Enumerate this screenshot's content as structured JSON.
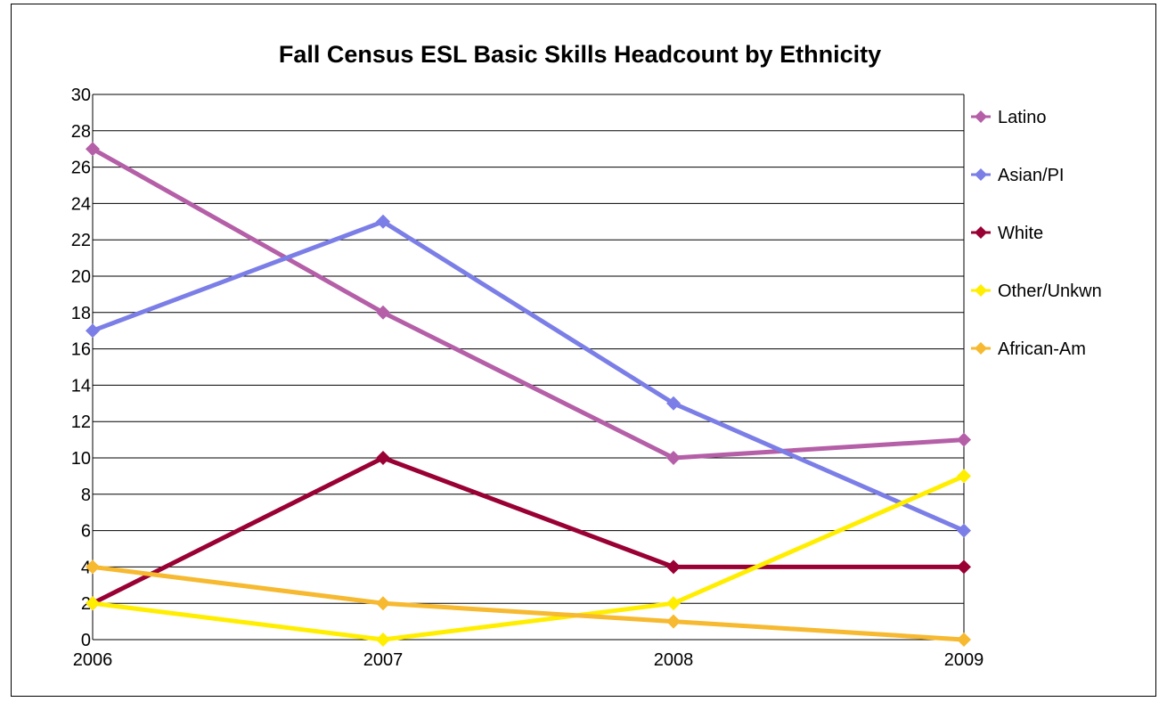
{
  "chart_data": {
    "type": "line",
    "title": "Fall Census ESL Basic Skills Headcount by Ethnicity",
    "xlabel": "",
    "ylabel": "",
    "x": [
      "2006",
      "2007",
      "2008",
      "2009"
    ],
    "ylim": [
      0,
      30
    ],
    "yticks": [
      "0",
      "2",
      "4",
      "6",
      "8",
      "10",
      "12",
      "14",
      "16",
      "18",
      "20",
      "22",
      "24",
      "26",
      "28",
      "30"
    ],
    "grid": true,
    "legend_position": "right",
    "series": [
      {
        "name": "Latino",
        "values": [
          27,
          18,
          10,
          11
        ],
        "color": "#b45fa7"
      },
      {
        "name": "Asian/PI",
        "values": [
          17,
          23,
          13,
          6
        ],
        "color": "#7b7ee6"
      },
      {
        "name": "White",
        "values": [
          2,
          10,
          4,
          4
        ],
        "color": "#990033"
      },
      {
        "name": "Other/Unkwn",
        "values": [
          2,
          0,
          2,
          9
        ],
        "color": "#ffee00"
      },
      {
        "name": "African-Am",
        "values": [
          4,
          2,
          1,
          0
        ],
        "color": "#f6b92f"
      }
    ]
  }
}
